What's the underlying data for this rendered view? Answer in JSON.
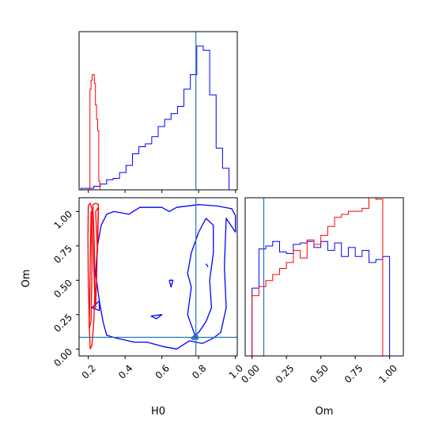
{
  "chart_data": {
    "type": "corner",
    "parameters": [
      "H0",
      "Om"
    ],
    "truth": {
      "H0": 0.785,
      "Om": 0.085,
      "color": "#1f77b4"
    },
    "series_colors": {
      "blue": "#0000ff",
      "red": "#ff0000"
    },
    "panels": [
      {
        "id": "hist-H0",
        "type": "histogram",
        "xlim": [
          0.15,
          1.01
        ],
        "x_ticks": [
          0.2,
          0.4,
          0.6,
          0.8,
          1.0
        ],
        "y_ticks_shown": false,
        "x_tick_labels_shown": false,
        "ylim": [
          0,
          1.1
        ],
        "series": [
          {
            "color": "#0000ff",
            "edges": [
              0.16,
              0.195,
              0.23,
              0.265,
              0.3,
              0.335,
              0.37,
              0.405,
              0.44,
              0.475,
              0.51,
              0.545,
              0.58,
              0.615,
              0.65,
              0.685,
              0.72,
              0.755,
              0.79,
              0.825,
              0.86,
              0.895,
              0.93,
              0.965,
              1.0
            ],
            "heights": [
              0.01,
              0.01,
              0.025,
              0.04,
              0.07,
              0.08,
              0.12,
              0.17,
              0.25,
              0.3,
              0.32,
              0.37,
              0.44,
              0.49,
              0.53,
              0.58,
              0.7,
              0.8,
              1.0,
              0.97,
              0.66,
              0.29,
              0.15,
              0.0
            ]
          },
          {
            "color": "#ff0000",
            "edges": [
              0.203,
              0.209,
              0.215,
              0.221,
              0.227,
              0.233,
              0.239,
              0.245,
              0.251,
              0.257,
              0.263,
              0.269
            ],
            "heights": [
              0.0,
              0.7,
              0.76,
              0.8,
              0.8,
              0.74,
              0.59,
              0.49,
              0.41,
              0.06,
              0.0
            ]
          }
        ]
      },
      {
        "id": "contour-H0-Om",
        "type": "contour",
        "xlabel": "H0",
        "ylabel": "Om",
        "xlim": [
          0.15,
          1.01
        ],
        "ylim": [
          -0.05,
          1.1
        ],
        "x_ticks": [
          0.2,
          0.4,
          0.6,
          0.8,
          1.0
        ],
        "x_tick_labels": [
          "0.2",
          "0.4",
          "0.6",
          "0.8",
          "1.0"
        ],
        "y_ticks": [
          0.0,
          0.25,
          0.5,
          0.75,
          1.0
        ],
        "y_tick_labels": [
          "0.00",
          "0.25",
          "0.50",
          "0.75",
          "1.00"
        ],
        "series": [
          {
            "color": "#0000ff",
            "contours": [
              [
                [
                  0.34,
                  1.0
                ],
                [
                  0.42,
                  0.98
                ],
                [
                  0.48,
                  1.03
                ],
                [
                  0.6,
                  1.03
                ],
                [
                  0.64,
                  1.0
                ],
                [
                  0.68,
                  1.03
                ],
                [
                  0.8,
                  1.05
                ],
                [
                  0.9,
                  1.04
                ],
                [
                  0.98,
                  1.02
                ],
                [
                  1.0,
                  0.97
                ],
                [
                  1.0,
                  0.85
                ],
                [
                  0.95,
                  0.95
                ],
                [
                  0.94,
                  0.6
                ],
                [
                  0.95,
                  0.3
                ],
                [
                  0.92,
                  0.12
                ],
                [
                  0.88,
                  0.08
                ],
                [
                  0.82,
                  0.04
                ],
                [
                  0.75,
                  0.06
                ],
                [
                  0.68,
                  0.0
                ],
                [
                  0.6,
                  0.02
                ],
                [
                  0.52,
                  0.05
                ],
                [
                  0.45,
                  0.05
                ],
                [
                  0.35,
                  0.08
                ],
                [
                  0.3,
                  0.1
                ],
                [
                  0.28,
                  0.2
                ],
                [
                  0.26,
                  0.35
                ],
                [
                  0.24,
                  0.55
                ],
                [
                  0.25,
                  0.75
                ],
                [
                  0.27,
                  0.9
                ],
                [
                  0.3,
                  0.98
                ],
                [
                  0.34,
                  1.0
                ]
              ],
              [
                [
                  0.78,
                  0.1
                ],
                [
                  0.74,
                  0.25
                ],
                [
                  0.76,
                  0.45
                ],
                [
                  0.74,
                  0.55
                ],
                [
                  0.76,
                  0.7
                ],
                [
                  0.8,
                  0.85
                ],
                [
                  0.84,
                  0.95
                ],
                [
                  0.88,
                  0.9
                ],
                [
                  0.88,
                  0.7
                ],
                [
                  0.86,
                  0.5
                ],
                [
                  0.87,
                  0.3
                ],
                [
                  0.84,
                  0.2
                ],
                [
                  0.8,
                  0.12
                ],
                [
                  0.78,
                  0.1
                ]
              ],
              [
                [
                  0.26,
                  0.35
                ],
                [
                  0.22,
                  0.3
                ],
                [
                  0.26,
                  0.28
                ],
                [
                  0.26,
                  0.35
                ]
              ],
              [
                [
                  0.54,
                  0.24
                ],
                [
                  0.57,
                  0.22
                ],
                [
                  0.6,
                  0.25
                ],
                [
                  0.54,
                  0.24
                ]
              ],
              [
                [
                  0.64,
                  0.5
                ],
                [
                  0.65,
                  0.45
                ],
                [
                  0.66,
                  0.5
                ],
                [
                  0.64,
                  0.5
                ]
              ],
              [
                [
                  0.84,
                  0.62
                ],
                [
                  0.85,
                  0.6
                ],
                [
                  0.84,
                  0.62
                ]
              ],
              [
                [
                  0.76,
                  0.08
                ],
                [
                  0.78,
                  0.1
                ],
                [
                  0.79,
                  0.08
                ],
                [
                  0.77,
                  0.07
                ],
                [
                  0.76,
                  0.08
                ]
              ]
            ]
          },
          {
            "color": "#ff0000",
            "contours": [
              [
                [
                  0.21,
                  0.0
                ],
                [
                  0.205,
                  0.2
                ],
                [
                  0.2,
                  0.5
                ],
                [
                  0.198,
                  0.8
                ],
                [
                  0.2,
                  1.04
                ],
                [
                  0.21,
                  1.06
                ],
                [
                  0.22,
                  1.02
                ],
                [
                  0.225,
                  0.8
                ],
                [
                  0.23,
                  0.6
                ],
                [
                  0.235,
                  0.4
                ],
                [
                  0.23,
                  0.2
                ],
                [
                  0.22,
                  0.03
                ],
                [
                  0.21,
                  0.0
                ]
              ],
              [
                [
                  0.225,
                  1.05
                ],
                [
                  0.24,
                  1.06
                ],
                [
                  0.255,
                  1.05
                ],
                [
                  0.25,
                  0.8
                ],
                [
                  0.245,
                  0.5
                ],
                [
                  0.24,
                  0.3
                ],
                [
                  0.235,
                  0.55
                ],
                [
                  0.232,
                  0.8
                ],
                [
                  0.225,
                  1.05
                ]
              ],
              [
                [
                  0.205,
                  0.15
                ],
                [
                  0.21,
                  0.6
                ],
                [
                  0.215,
                  1.0
                ],
                [
                  0.22,
                  0.6
                ],
                [
                  0.215,
                  0.2
                ],
                [
                  0.205,
                  0.15
                ]
              ],
              [
                [
                  0.24,
                  1.0
                ],
                [
                  0.25,
                  0.7
                ],
                [
                  0.255,
                  1.03
                ],
                [
                  0.24,
                  1.0
                ]
              ]
            ]
          }
        ]
      },
      {
        "id": "hist-Om",
        "type": "histogram",
        "xlabel": "Om",
        "xlim": [
          -0.05,
          1.1
        ],
        "x_ticks": [
          0.0,
          0.25,
          0.5,
          0.75,
          1.0
        ],
        "x_tick_labels": [
          "0.00",
          "0.25",
          "0.50",
          "0.75",
          "1.00"
        ],
        "y_ticks_shown": false,
        "ylim": [
          0,
          1.05
        ],
        "series": [
          {
            "color": "#0000ff",
            "edges": [
              0.0,
              0.05,
              0.1,
              0.15,
              0.2,
              0.25,
              0.3,
              0.35,
              0.4,
              0.45,
              0.5,
              0.55,
              0.6,
              0.65,
              0.7,
              0.75,
              0.8,
              0.85,
              0.9,
              0.95,
              1.0,
              1.05
            ],
            "heights": [
              0.45,
              0.71,
              0.73,
              0.76,
              0.69,
              0.68,
              0.74,
              0.75,
              0.76,
              0.72,
              0.76,
              0.7,
              0.75,
              0.66,
              0.72,
              0.66,
              0.7,
              0.62,
              0.64,
              0.66,
              0.0
            ]
          },
          {
            "color": "#ff0000",
            "edges": [
              0.0,
              0.05,
              0.1,
              0.15,
              0.2,
              0.25,
              0.3,
              0.35,
              0.4,
              0.45,
              0.5,
              0.55,
              0.6,
              0.65,
              0.7,
              0.75,
              0.8,
              0.85,
              0.9,
              0.95,
              1.0
            ],
            "heights": [
              0.4,
              0.46,
              0.5,
              0.54,
              0.58,
              0.62,
              0.7,
              0.65,
              0.77,
              0.74,
              0.8,
              0.86,
              0.92,
              0.94,
              0.96,
              0.96,
              0.98,
              1.05,
              1.04,
              0.0
            ]
          }
        ]
      }
    ]
  }
}
